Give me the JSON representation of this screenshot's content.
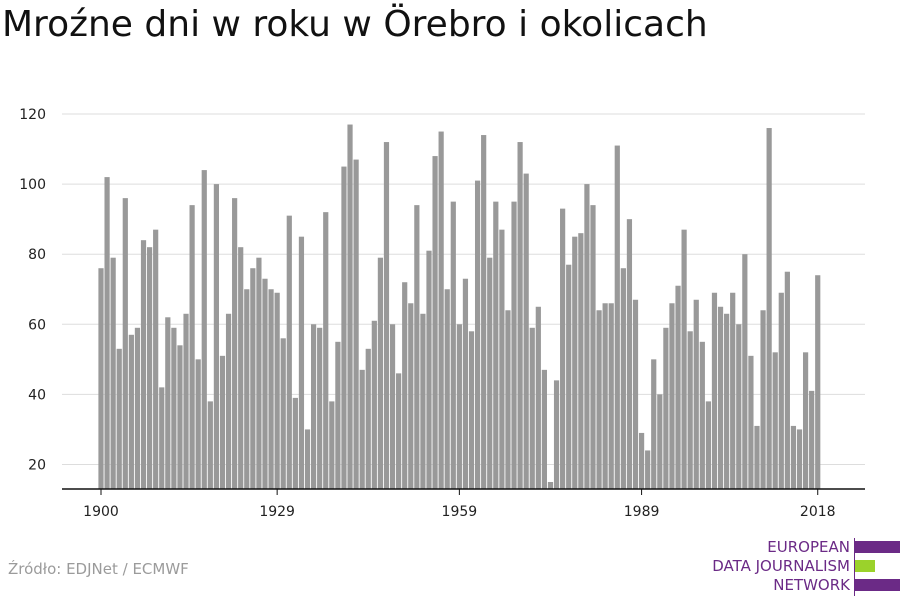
{
  "title": "Mroźne dni w roku w Örebro i okolicach",
  "source": "Źródło: EDJNet / ECMWF",
  "logo": {
    "lines": [
      "EUROPEAN",
      "DATA JOURNALISM",
      "NETWORK"
    ],
    "colors": {
      "purple": "#6b2a86",
      "green": "#9bd22b"
    }
  },
  "colors": {
    "bar": "#999999",
    "grid": "#dddddd",
    "axis": "#111111"
  },
  "chart_data": {
    "type": "bar",
    "title": "Mroźne dni w roku w Örebro i okolicach",
    "xlabel": "",
    "ylabel": "",
    "ylim": [
      13,
      124
    ],
    "yticks": [
      20,
      40,
      60,
      80,
      100,
      120
    ],
    "xtick_labels": [
      "1900",
      "1929",
      "1959",
      "1989",
      "2018"
    ],
    "grid": true,
    "x": [
      1900,
      1901,
      1902,
      1903,
      1904,
      1905,
      1906,
      1907,
      1908,
      1909,
      1910,
      1911,
      1912,
      1913,
      1914,
      1915,
      1916,
      1917,
      1918,
      1919,
      1920,
      1921,
      1922,
      1923,
      1924,
      1925,
      1926,
      1927,
      1928,
      1929,
      1930,
      1931,
      1932,
      1933,
      1934,
      1935,
      1936,
      1937,
      1938,
      1939,
      1940,
      1941,
      1942,
      1943,
      1944,
      1945,
      1946,
      1947,
      1948,
      1949,
      1950,
      1951,
      1952,
      1953,
      1954,
      1955,
      1956,
      1957,
      1958,
      1959,
      1960,
      1961,
      1962,
      1963,
      1964,
      1965,
      1966,
      1967,
      1968,
      1969,
      1970,
      1971,
      1972,
      1973,
      1974,
      1975,
      1976,
      1977,
      1978,
      1979,
      1980,
      1981,
      1982,
      1983,
      1984,
      1985,
      1986,
      1987,
      1988,
      1989,
      1990,
      1991,
      1992,
      1993,
      1994,
      1995,
      1996,
      1997,
      1998,
      1999,
      2000,
      2001,
      2002,
      2003,
      2004,
      2005,
      2006,
      2007,
      2008,
      2009,
      2010,
      2011,
      2012,
      2013,
      2014,
      2015,
      2016,
      2017,
      2018
    ],
    "values": [
      76,
      102,
      79,
      53,
      96,
      57,
      59,
      84,
      82,
      87,
      42,
      62,
      59,
      54,
      63,
      94,
      50,
      104,
      38,
      100,
      51,
      63,
      96,
      82,
      70,
      76,
      79,
      73,
      70,
      69,
      56,
      91,
      39,
      85,
      30,
      60,
      59,
      92,
      38,
      55,
      105,
      117,
      107,
      47,
      53,
      61,
      79,
      112,
      60,
      46,
      72,
      66,
      94,
      63,
      81,
      108,
      115,
      70,
      95,
      60,
      73,
      58,
      101,
      114,
      79,
      95,
      87,
      64,
      95,
      112,
      103,
      59,
      65,
      47,
      15,
      44,
      93,
      77,
      85,
      86,
      100,
      94,
      64,
      66,
      66,
      111,
      76,
      90,
      67,
      29,
      24,
      50,
      40,
      59,
      66,
      71,
      87,
      58,
      67,
      55,
      38,
      69,
      65,
      63,
      69,
      60,
      80,
      51,
      31,
      64,
      116,
      52,
      69,
      75,
      31,
      30,
      52,
      41,
      74
    ]
  }
}
